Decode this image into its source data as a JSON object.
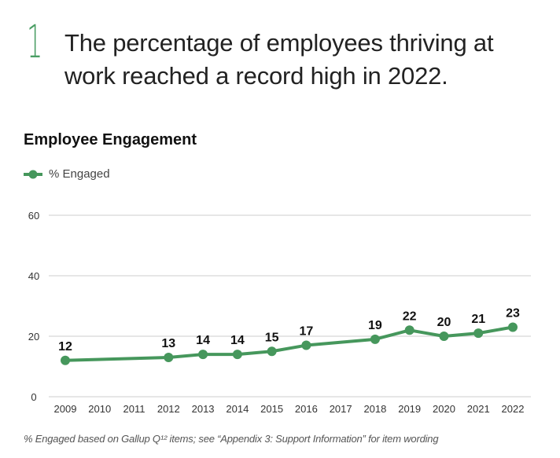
{
  "headline": {
    "number": "1",
    "line1": "The percentage of employees thriving at",
    "line2": "work reached a record high in 2022."
  },
  "colors": {
    "accent": "#4a9e64",
    "series": "#46975c",
    "grid": "#dddddd"
  },
  "footnote": "% Engaged based on Gallup Q¹² items; see “Appendix 3: Support Information” for item wording",
  "chart_data": {
    "type": "line",
    "title": "Employee Engagement",
    "xlabel": "",
    "ylabel": "",
    "ylim": [
      0,
      60
    ],
    "yticks": [
      0,
      20,
      40,
      60
    ],
    "grid": true,
    "legend_position": "top-left",
    "categories": [
      "2009",
      "2010",
      "2011",
      "2012",
      "2013",
      "2014",
      "2015",
      "2016",
      "2017",
      "2018",
      "2019",
      "2020",
      "2021",
      "2022"
    ],
    "series": [
      {
        "name": "% Engaged",
        "values": [
          12,
          null,
          null,
          13,
          14,
          14,
          15,
          17,
          null,
          19,
          22,
          20,
          21,
          23
        ]
      }
    ]
  }
}
